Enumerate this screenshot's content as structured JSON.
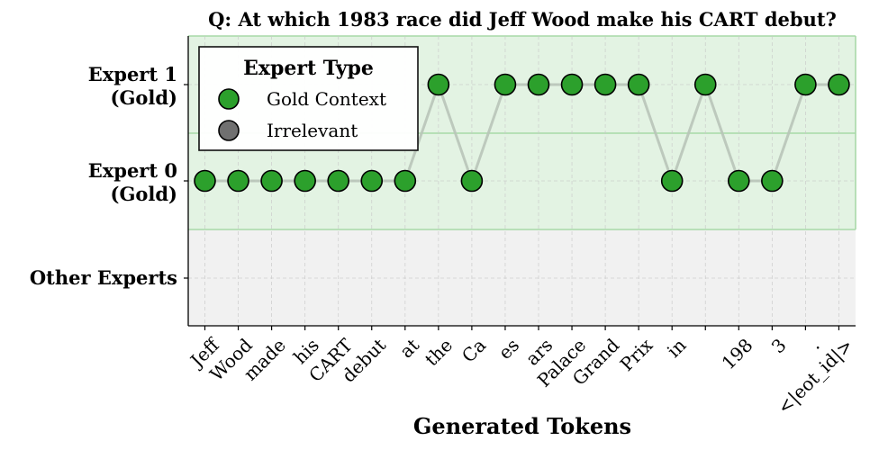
{
  "chart_data": {
    "type": "scatter",
    "title": "Q: At which 1983 race did Jeff Wood make his CART debut?",
    "xlabel": "Generated Tokens",
    "ylabel": "",
    "y_categories": [
      "Other Experts",
      "Expert 0\n(Gold)",
      "Expert 1\n(Gold)"
    ],
    "categories": [
      "Jeff",
      "Wood",
      "made",
      "his",
      "CART",
      "debut",
      "at",
      "the",
      "Ca",
      "es",
      "ars",
      "Palace",
      "Grand",
      "Prix",
      "in",
      "",
      "198",
      "3",
      ".",
      "<|eot_id|>"
    ],
    "series": [
      {
        "name": "Gold Context",
        "expert_index": [
          0,
          0,
          0,
          0,
          0,
          0,
          0,
          1,
          0,
          1,
          1,
          1,
          1,
          1,
          0,
          1,
          0,
          0,
          1,
          1
        ]
      }
    ],
    "legend": {
      "title": "Expert Type",
      "position": "top-left",
      "entries": [
        {
          "label": "Gold Context",
          "color": "#2ca02c"
        },
        {
          "label": "Irrelevant",
          "color": "#707070"
        }
      ]
    },
    "colors": {
      "gold_band": "#e3f3e3",
      "gold_band_border": "#a8d9a8",
      "other_band": "#f1f1f1",
      "marker": "#2ca02c",
      "line": "#b8c4b8"
    },
    "grid": true
  }
}
